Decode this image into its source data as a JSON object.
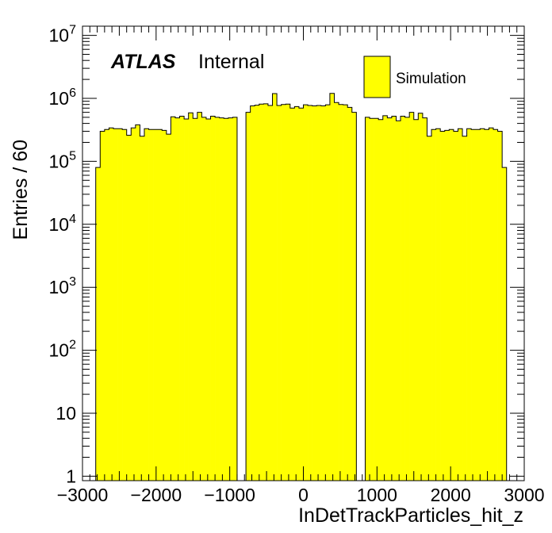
{
  "chart_data": {
    "type": "bar",
    "style": "histogram",
    "xlabel": "InDetTrackParticles_hit_z",
    "ylabel": "Entries / 60",
    "xlim": [
      -3000,
      3000
    ],
    "ylim": [
      0.85,
      14000000
    ],
    "yscale": "log",
    "bin_width": 60,
    "fill_color": "#ffff00",
    "edge_color": "#000000",
    "x_ticks": [
      -3000,
      -2000,
      -1000,
      0,
      1000,
      2000,
      3000
    ],
    "x_tick_labels": [
      "−3000",
      "−2000",
      "−1000",
      "0",
      "1000",
      "2000",
      "3000"
    ],
    "y_ticks": [
      {
        "value": 1,
        "label": "1",
        "sup": ""
      },
      {
        "value": 10,
        "label": "10",
        "sup": ""
      },
      {
        "value": 100,
        "label": "10",
        "sup": "2"
      },
      {
        "value": 1000,
        "label": "10",
        "sup": "3"
      },
      {
        "value": 10000,
        "label": "10",
        "sup": "4"
      },
      {
        "value": 100000,
        "label": "10",
        "sup": "5"
      },
      {
        "value": 1000000,
        "label": "10",
        "sup": "6"
      },
      {
        "value": 10000000,
        "label": "10",
        "sup": "7"
      }
    ],
    "legend": {
      "position": "top-right",
      "entries": [
        {
          "label": "Simulation",
          "color": "#ffff00"
        }
      ]
    },
    "annotation": {
      "atlas": "ATLAS",
      "status": "Internal"
    },
    "x": [
      -2790,
      -2730,
      -2670,
      -2610,
      -2550,
      -2490,
      -2430,
      -2370,
      -2310,
      -2250,
      -2190,
      -2130,
      -2070,
      -2010,
      -1950,
      -1890,
      -1830,
      -1770,
      -1710,
      -1650,
      -1590,
      -1530,
      -1470,
      -1410,
      -1350,
      -1290,
      -1230,
      -1170,
      -1110,
      -1050,
      -990,
      -930,
      -750,
      -690,
      -630,
      -570,
      -510,
      -450,
      -390,
      -330,
      -270,
      -210,
      -150,
      -90,
      -30,
      30,
      90,
      150,
      210,
      270,
      330,
      390,
      450,
      510,
      570,
      630,
      690,
      870,
      930,
      990,
      1050,
      1110,
      1170,
      1230,
      1290,
      1350,
      1410,
      1470,
      1530,
      1590,
      1650,
      1710,
      1770,
      1830,
      1890,
      1950,
      2010,
      2070,
      2130,
      2190,
      2250,
      2310,
      2370,
      2430,
      2490,
      2550,
      2610,
      2670,
      2730
    ],
    "values": [
      80000,
      300000,
      320000,
      340000,
      330000,
      330000,
      320000,
      260000,
      340000,
      380000,
      250000,
      330000,
      320000,
      320000,
      320000,
      310000,
      270000,
      510000,
      490000,
      520000,
      470000,
      590000,
      480000,
      600000,
      500000,
      470000,
      520000,
      500000,
      490000,
      480000,
      490000,
      500000,
      600000,
      760000,
      780000,
      810000,
      820000,
      770000,
      1190000,
      770000,
      800000,
      810000,
      700000,
      740000,
      700000,
      790000,
      770000,
      760000,
      770000,
      760000,
      790000,
      1200000,
      860000,
      800000,
      790000,
      720000,
      600000,
      500000,
      480000,
      480000,
      460000,
      530000,
      490000,
      520000,
      440000,
      520000,
      500000,
      600000,
      460000,
      580000,
      490000,
      250000,
      320000,
      330000,
      300000,
      310000,
      320000,
      300000,
      330000,
      250000,
      330000,
      320000,
      320000,
      330000,
      320000,
      340000,
      320000,
      300000,
      80000
    ]
  }
}
